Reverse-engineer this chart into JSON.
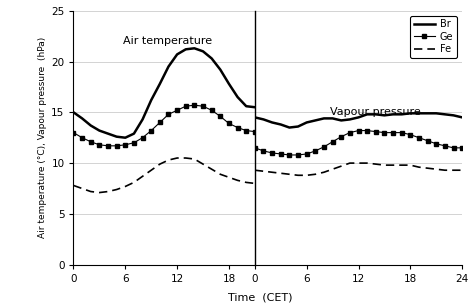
{
  "ylabel": "Air temperature (°C), Vapour pressure  (hPa)",
  "xlabel": "Time  (CET)",
  "ylim": [
    0,
    25
  ],
  "yticks": [
    0,
    5,
    10,
    15,
    20,
    25
  ],
  "left_xticks": [
    0,
    6,
    12,
    18
  ],
  "right_xticks": [
    0,
    6,
    12,
    18,
    24
  ],
  "left_xlim": [
    0,
    21
  ],
  "right_xlim": [
    0,
    24
  ],
  "label_air": "Air temperature",
  "label_vapour": "Vapour pressure",
  "air_temp": {
    "Br": {
      "x": [
        0,
        1,
        2,
        3,
        4,
        5,
        6,
        7,
        8,
        9,
        10,
        11,
        12,
        13,
        14,
        15,
        16,
        17,
        18,
        19,
        20,
        21
      ],
      "y": [
        15.0,
        14.4,
        13.7,
        13.2,
        12.9,
        12.6,
        12.5,
        12.9,
        14.3,
        16.2,
        17.8,
        19.5,
        20.7,
        21.2,
        21.3,
        21.0,
        20.3,
        19.2,
        17.8,
        16.5,
        15.6,
        15.5
      ]
    },
    "Ge": {
      "x": [
        0,
        1,
        2,
        3,
        4,
        5,
        6,
        7,
        8,
        9,
        10,
        11,
        12,
        13,
        14,
        15,
        16,
        17,
        18,
        19,
        20,
        21
      ],
      "y": [
        13.0,
        12.5,
        12.1,
        11.8,
        11.7,
        11.7,
        11.8,
        12.0,
        12.5,
        13.2,
        14.0,
        14.8,
        15.2,
        15.6,
        15.7,
        15.6,
        15.2,
        14.6,
        13.9,
        13.5,
        13.2,
        13.1
      ]
    },
    "Fe": {
      "x": [
        0,
        1,
        2,
        3,
        4,
        5,
        6,
        7,
        8,
        9,
        10,
        11,
        12,
        13,
        14,
        15,
        16,
        17,
        18,
        19,
        20,
        21
      ],
      "y": [
        7.8,
        7.5,
        7.2,
        7.1,
        7.2,
        7.4,
        7.7,
        8.1,
        8.7,
        9.3,
        9.9,
        10.3,
        10.5,
        10.5,
        10.4,
        9.9,
        9.4,
        8.9,
        8.6,
        8.3,
        8.1,
        8.0
      ]
    }
  },
  "vapour": {
    "Br": {
      "x": [
        0,
        1,
        2,
        3,
        4,
        5,
        6,
        7,
        8,
        9,
        10,
        11,
        12,
        13,
        14,
        15,
        16,
        17,
        18,
        19,
        20,
        21,
        22,
        23,
        24
      ],
      "y": [
        14.5,
        14.3,
        14.0,
        13.8,
        13.5,
        13.6,
        14.0,
        14.2,
        14.4,
        14.4,
        14.2,
        14.3,
        14.5,
        14.8,
        14.8,
        14.7,
        14.8,
        14.8,
        14.9,
        14.9,
        14.9,
        14.9,
        14.8,
        14.7,
        14.5
      ]
    },
    "Ge": {
      "x": [
        0,
        1,
        2,
        3,
        4,
        5,
        6,
        7,
        8,
        9,
        10,
        11,
        12,
        13,
        14,
        15,
        16,
        17,
        18,
        19,
        20,
        21,
        22,
        23,
        24
      ],
      "y": [
        11.5,
        11.2,
        11.0,
        10.9,
        10.8,
        10.8,
        10.9,
        11.2,
        11.6,
        12.1,
        12.6,
        13.0,
        13.2,
        13.2,
        13.1,
        13.0,
        13.0,
        13.0,
        12.8,
        12.5,
        12.2,
        11.9,
        11.7,
        11.5,
        11.5
      ]
    },
    "Fe": {
      "x": [
        0,
        1,
        2,
        3,
        4,
        5,
        6,
        7,
        8,
        9,
        10,
        11,
        12,
        13,
        14,
        15,
        16,
        17,
        18,
        19,
        20,
        21,
        22,
        23,
        24
      ],
      "y": [
        9.3,
        9.2,
        9.1,
        9.0,
        8.9,
        8.8,
        8.8,
        8.9,
        9.1,
        9.4,
        9.7,
        10.0,
        10.0,
        10.0,
        9.9,
        9.8,
        9.8,
        9.8,
        9.8,
        9.6,
        9.5,
        9.4,
        9.3,
        9.3,
        9.3
      ]
    }
  }
}
